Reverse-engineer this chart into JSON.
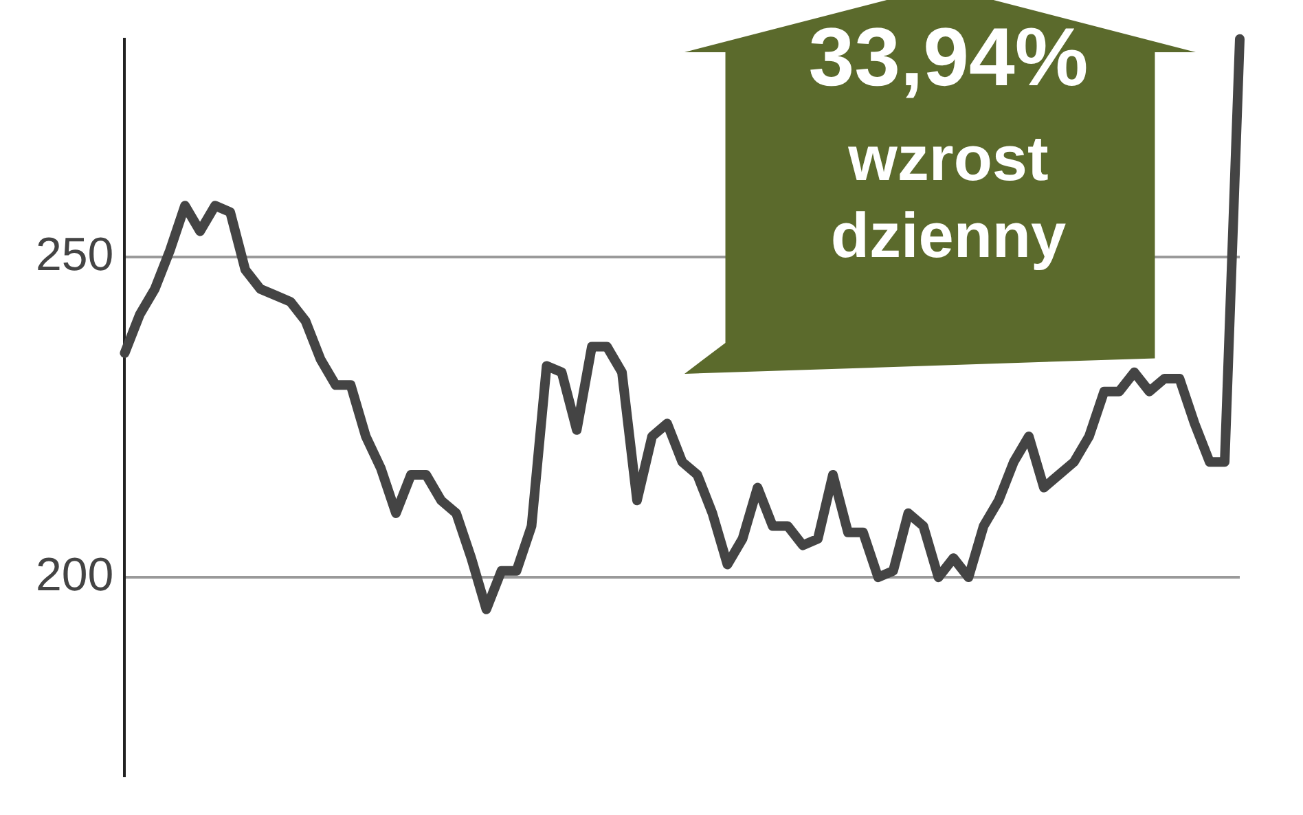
{
  "chart_data": {
    "type": "line",
    "categories": [
      null,
      null,
      null,
      null,
      null,
      null,
      null,
      null,
      null,
      null,
      null,
      null,
      null,
      null,
      null,
      null,
      null,
      null,
      null,
      null,
      null,
      null,
      null,
      null,
      null,
      null,
      null,
      null,
      null,
      null,
      null,
      null,
      null,
      null,
      null,
      null,
      null,
      null,
      null,
      null,
      null,
      null,
      null,
      null,
      null,
      null,
      null,
      null,
      null,
      null,
      null,
      null,
      null,
      null,
      null,
      null,
      null,
      null,
      null,
      null,
      null,
      null,
      null,
      null,
      null,
      null,
      null,
      null,
      null,
      null,
      null,
      null,
      null,
      null,
      null
    ],
    "series": [
      {
        "color": "#444444",
        "values": [
          235,
          241,
          245,
          251,
          258,
          254,
          258,
          257,
          248,
          245,
          244,
          243,
          240,
          234,
          230,
          230,
          222,
          217,
          210,
          216,
          216,
          212,
          210,
          203,
          195,
          201,
          201,
          208,
          233,
          232,
          223,
          236,
          236,
          232,
          212,
          222,
          224,
          218,
          216,
          210,
          202,
          206,
          214,
          208,
          208,
          205,
          206,
          216,
          207,
          207,
          200,
          201,
          210,
          208,
          200,
          203,
          200,
          208,
          212,
          218,
          222,
          214,
          216,
          218,
          222,
          229,
          229,
          232,
          229,
          231,
          231,
          224,
          218,
          218,
          284
        ]
      }
    ],
    "ylim": [
      169,
      284
    ],
    "yticks": [
      200,
      250
    ],
    "grid": "y",
    "tick_labels": "y",
    "marker": "none",
    "line_style": "solid",
    "legend": false,
    "annotations": [
      "33,94%",
      "wzrost",
      "dzienny"
    ]
  }
}
